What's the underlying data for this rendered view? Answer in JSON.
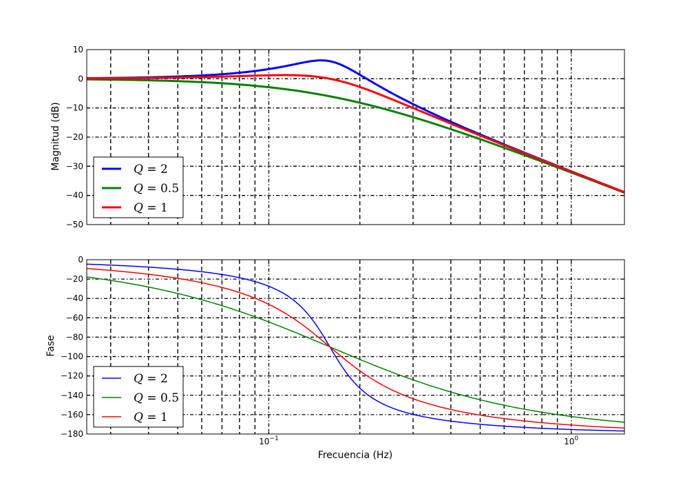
{
  "chart_data": [
    {
      "type": "line",
      "title": "",
      "xlabel": "",
      "ylabel": "Magnitud (dB)",
      "xscale": "log",
      "xlim": [
        0.025,
        1.5
      ],
      "ylim": [
        -50,
        10
      ],
      "yticks": [
        10,
        0,
        -10,
        -20,
        -30,
        -40,
        -50
      ],
      "ytick_labels": [
        "10",
        "0",
        "−10",
        "−20",
        "−30",
        "−40",
        "−50"
      ],
      "xtick_labels": [],
      "grid": true,
      "legend": "bottom-left",
      "f0": 0.159155,
      "quantity": "magnitude_db",
      "series": [
        {
          "name": "Q = 2",
          "name_var": "Q",
          "name_val": "2",
          "Q": 2,
          "color": "#0000ff",
          "line_width": 3,
          "x": [
            0.025,
            0.05,
            0.08,
            0.1,
            0.12,
            0.14,
            0.15,
            0.16,
            0.18,
            0.2,
            0.25,
            0.3,
            0.4,
            0.5,
            0.7,
            1.0,
            1.5
          ],
          "y": [
            0.2,
            0.9,
            2.4,
            3.5,
            5.0,
            5.9,
            6.0,
            5.6,
            3.8,
            1.6,
            -3.3,
            -7.1,
            -12.5,
            -16.5,
            -22.3,
            -28.6,
            -35.6
          ]
        },
        {
          "name": "Q = 0.5",
          "name_var": "Q",
          "name_val": "0.5",
          "Q": 0.5,
          "color": "#008000",
          "line_width": 3,
          "x": [
            0.025,
            0.05,
            0.08,
            0.1,
            0.12,
            0.14,
            0.15,
            0.16,
            0.18,
            0.2,
            0.25,
            0.3,
            0.4,
            0.5,
            0.7,
            1.0,
            1.5
          ],
          "y": [
            -0.2,
            -0.8,
            -1.9,
            -2.7,
            -3.7,
            -4.7,
            -5.4,
            -6.0,
            -7.1,
            -8.2,
            -10.6,
            -12.6,
            -16.1,
            -18.9,
            -23.7,
            -29.0,
            -35.6
          ]
        },
        {
          "name": "Q = 1",
          "name_var": "Q",
          "name_val": "1",
          "Q": 1,
          "color": "#ff0000",
          "line_width": 3,
          "x": [
            0.025,
            0.05,
            0.08,
            0.1,
            0.12,
            0.14,
            0.15,
            0.16,
            0.18,
            0.2,
            0.25,
            0.3,
            0.4,
            0.5,
            0.7,
            1.0,
            1.5
          ],
          "y": [
            0.0,
            0.4,
            0.9,
            1.2,
            1.2,
            0.8,
            0.4,
            0.0,
            -1.0,
            -2.2,
            -5.3,
            -8.3,
            -13.2,
            -17.2,
            -22.7,
            -28.8,
            -35.6
          ]
        }
      ]
    },
    {
      "type": "line",
      "title": "",
      "xlabel": "Frecuencia (Hz)",
      "ylabel": "Fase",
      "xscale": "log",
      "xlim": [
        0.025,
        1.5
      ],
      "ylim": [
        -180,
        0
      ],
      "yticks": [
        0,
        -20,
        -40,
        -60,
        -80,
        -100,
        -120,
        -140,
        -160,
        -180
      ],
      "ytick_labels": [
        "0",
        "−20",
        "−40",
        "−60",
        "−80",
        "−100",
        "−120",
        "−140",
        "−160",
        "−180"
      ],
      "xticks": [
        0.1,
        1.0
      ],
      "xtick_labels": [
        {
          "base": "10",
          "exp": "−1"
        },
        {
          "base": "10",
          "exp": "0"
        }
      ],
      "grid": true,
      "legend": "bottom-left",
      "f0": 0.159155,
      "quantity": "phase_deg",
      "series": [
        {
          "name": "Q = 2",
          "name_var": "Q",
          "name_val": "2",
          "Q": 2,
          "color": "#0000ff",
          "line_width": 1.5,
          "x": [
            0.025,
            0.05,
            0.08,
            0.1,
            0.12,
            0.14,
            0.15,
            0.16,
            0.18,
            0.2,
            0.25,
            0.3,
            0.4,
            0.5,
            0.7,
            1.0,
            1.5
          ],
          "y": [
            -4.6,
            -10.0,
            -20.5,
            -32.7,
            -52.3,
            -78.5,
            -94.5,
            -111.0,
            -134.5,
            -148.5,
            -163.1,
            -168.1,
            -172.0,
            -174.0,
            -176.1,
            -177.4,
            -178.3
          ]
        },
        {
          "name": "Q = 0.5",
          "name_var": "Q",
          "name_val": "0.5",
          "Q": 0.5,
          "color": "#008000",
          "line_width": 1.5,
          "x": [
            0.025,
            0.05,
            0.08,
            0.1,
            0.12,
            0.14,
            0.15,
            0.16,
            0.18,
            0.2,
            0.25,
            0.3,
            0.4,
            0.5,
            0.7,
            1.0,
            1.5
          ],
          "y": [
            -17.9,
            -34.8,
            -53.5,
            -64.3,
            -74.0,
            -82.7,
            -86.7,
            -90.0,
            -96.3,
            -102.7,
            -115.3,
            -124.5,
            -138.1,
            -146.8,
            -157.9,
            -166.1,
            -171.9
          ]
        },
        {
          "name": "Q = 1",
          "name_var": "Q",
          "name_val": "1",
          "Q": 1,
          "color": "#ff0000",
          "line_width": 1.5,
          "x": [
            0.025,
            0.05,
            0.08,
            0.1,
            0.12,
            0.14,
            0.15,
            0.16,
            0.18,
            0.2,
            0.25,
            0.3,
            0.4,
            0.5,
            0.7,
            1.0,
            1.5
          ],
          "y": [
            -9.2,
            -19.2,
            -34.8,
            -47.5,
            -61.2,
            -75.8,
            -83.0,
            -90.0,
            -103.1,
            -114.3,
            -134.3,
            -145.5,
            -157.6,
            -163.8,
            -170.4,
            -174.5,
            -176.8
          ]
        }
      ]
    }
  ]
}
